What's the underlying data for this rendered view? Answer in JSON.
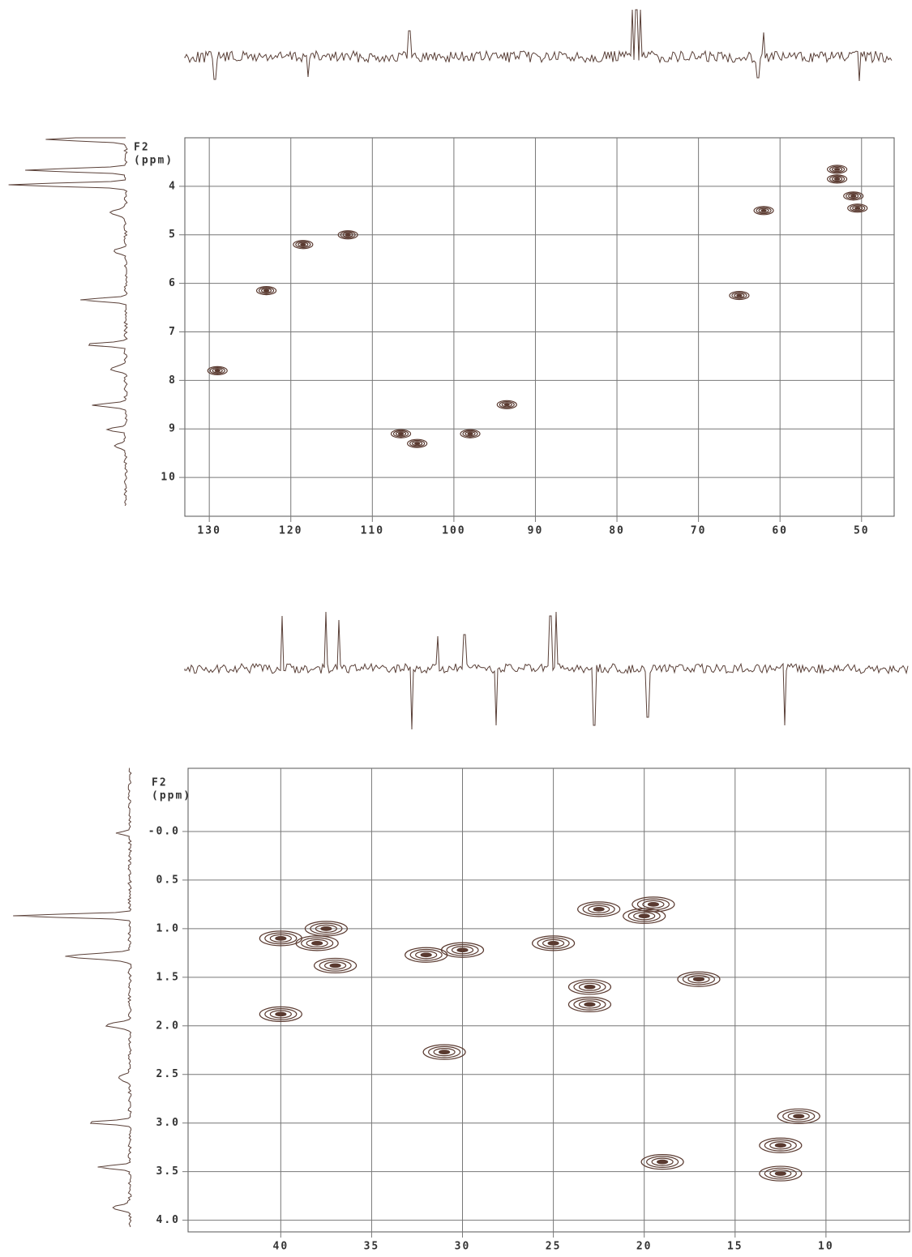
{
  "chart_data": [
    {
      "type": "contour",
      "ylabel": [
        "F2",
        "(ppm)"
      ],
      "color": "#5a3a30",
      "grid": true,
      "xlim": [
        133,
        46
      ],
      "xticks": [
        130,
        120,
        110,
        100,
        90,
        80,
        70,
        60,
        50
      ],
      "ylim": [
        3.0,
        10.8
      ],
      "yticks": [
        4,
        5,
        6,
        7,
        8,
        9,
        10
      ],
      "x": [
        129,
        123,
        118.5,
        113,
        106.5,
        104.5,
        98,
        93.5,
        65,
        62,
        53,
        53,
        51,
        50.5
      ],
      "y": [
        7.8,
        6.15,
        5.2,
        5.0,
        9.1,
        9.3,
        9.1,
        8.5,
        6.25,
        4.5,
        3.65,
        3.85,
        4.2,
        4.45
      ]
    },
    {
      "type": "contour",
      "ylabel": [
        "F2",
        "(ppm)"
      ],
      "color": "#5a3a30",
      "grid": true,
      "xlim": [
        45.1,
        5.4
      ],
      "xticks": [
        40,
        35,
        30,
        25,
        20,
        15,
        10
      ],
      "ylim": [
        -0.65,
        4.12
      ],
      "yticks": [
        {
          "value": 0,
          "label": "-0.0"
        },
        0.5,
        {
          "value": 1,
          "label": "1.0"
        },
        1.5,
        {
          "value": 2,
          "label": "2.0"
        },
        2.5,
        {
          "value": 3,
          "label": "3.0"
        },
        3.5,
        {
          "value": 4,
          "label": "4.0"
        }
      ],
      "x": [
        37.5,
        38,
        40,
        37,
        30,
        32,
        25,
        22.5,
        19.5,
        20,
        17,
        23,
        23,
        40,
        31,
        11.5,
        12.5,
        12.5,
        19
      ],
      "y": [
        1.0,
        1.15,
        1.1,
        1.38,
        1.22,
        1.27,
        1.15,
        0.8,
        0.75,
        0.87,
        1.52,
        1.6,
        1.78,
        1.88,
        2.27,
        2.93,
        3.23,
        3.52,
        3.4
      ]
    }
  ]
}
